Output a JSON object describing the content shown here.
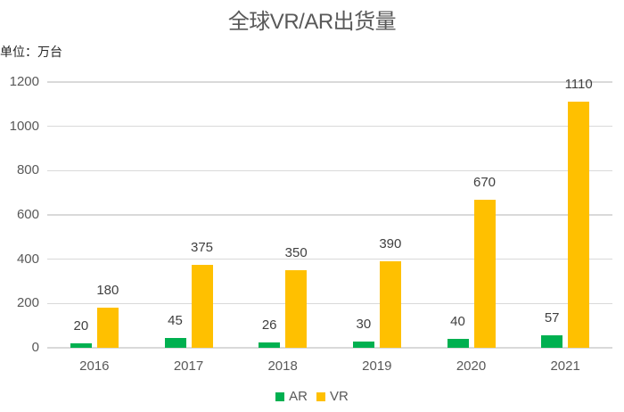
{
  "chart_data": {
    "type": "bar",
    "title": "全球VR/AR出货量",
    "subtitle": "单位：万台",
    "xlabel": "",
    "ylabel": "单位：万台",
    "categories": [
      "2016",
      "2017",
      "2018",
      "2019",
      "2020",
      "2021"
    ],
    "series": [
      {
        "name": "AR",
        "color": "#00b050",
        "values": [
          20,
          45,
          26,
          30,
          40,
          57
        ]
      },
      {
        "name": "VR",
        "color": "#ffc000",
        "values": [
          180,
          375,
          350,
          390,
          670,
          1110
        ]
      }
    ],
    "ylim": [
      0,
      1200
    ],
    "yticks": [
      "0",
      "200",
      "400",
      "600",
      "800",
      "1000",
      "1200"
    ],
    "grid": true,
    "legend_position": "bottom",
    "data_labels": true
  }
}
